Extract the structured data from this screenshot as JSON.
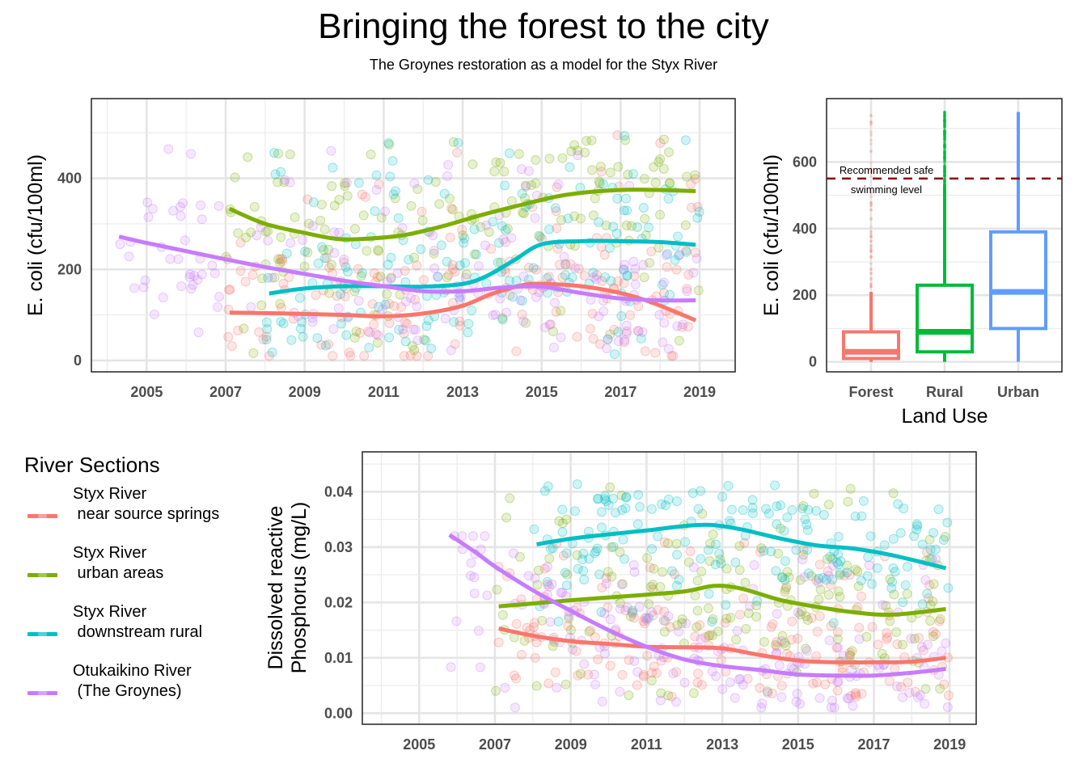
{
  "title": "Bringing the forest to the city",
  "subtitle": "The Groynes restoration as a model for the Styx River",
  "legend": {
    "title": "River Sections",
    "items": [
      {
        "line1": "Styx River",
        "line2": " near source springs",
        "color": "#F8766D"
      },
      {
        "line1": "Styx River",
        "line2": " urban areas",
        "color": "#7CAE00"
      },
      {
        "line1": "Styx River",
        "line2": " downstream rural",
        "color": "#00BFC4"
      },
      {
        "line1": "Otukaikino River",
        "line2": " (The Groynes)",
        "color": "#C77CFF"
      }
    ]
  },
  "chart_data": [
    {
      "id": "ecoli-time",
      "type": "scatter",
      "title": "",
      "xlabel": "",
      "ylabel": "E. coli (cfu/100ml)",
      "xlim": [
        2003.6,
        2019.9
      ],
      "ylim": [
        -25,
        575
      ],
      "x_ticks": [
        "2005",
        "2007",
        "2009",
        "2011",
        "2013",
        "2015",
        "2017",
        "2019"
      ],
      "y_ticks": [
        "0",
        "200",
        "400"
      ],
      "grid": true,
      "series": [
        {
          "name": "Styx River near source springs",
          "color": "#F8766D",
          "smooth": {
            "x": [
              2007.1,
              2008,
              2009,
              2010,
              2011,
              2012,
              2013,
              2013.7,
              2014.5,
              2015,
              2016,
              2017,
              2017.8,
              2018.9
            ],
            "y": [
              105,
              104,
              102,
              100,
              97,
              103,
              120,
              145,
              165,
              168,
              163,
              148,
              127,
              88
            ]
          },
          "point_range": {
            "x": [
              2007,
              2019
            ],
            "y": [
              10,
              550
            ]
          }
        },
        {
          "name": "Styx River urban areas",
          "color": "#7CAE00",
          "smooth": {
            "x": [
              2007.1,
              2008,
              2009,
              2009.8,
              2010.5,
              2011.5,
              2012.5,
              2013.5,
              2014.5,
              2015.5,
              2016.5,
              2017.5,
              2018.9
            ],
            "y": [
              333,
              300,
              280,
              267,
              267,
              275,
              295,
              320,
              342,
              362,
              372,
              375,
              372
            ]
          },
          "point_range": {
            "x": [
              2007,
              2019
            ],
            "y": [
              10,
              550
            ]
          }
        },
        {
          "name": "Styx River downstream rural",
          "color": "#00BFC4",
          "smooth": {
            "x": [
              2008.1,
              2009,
              2010,
              2011,
              2012,
              2013,
              2013.6,
              2014.3,
              2015,
              2016,
              2017,
              2018,
              2018.9
            ],
            "y": [
              147,
              158,
              163,
              163,
              162,
              168,
              185,
              220,
              255,
              262,
              262,
              260,
              254
            ]
          },
          "point_range": {
            "x": [
              2008,
              2019
            ],
            "y": [
              10,
              550
            ]
          }
        },
        {
          "name": "Otukaikino River (The Groynes)",
          "color": "#C77CFF",
          "smooth": {
            "x": [
              2004.3,
              2005,
              2006,
              2007,
              2008,
              2009,
              2010,
              2011,
              2012,
              2013,
              2014,
              2015,
              2016,
              2017,
              2018,
              2018.9
            ],
            "y": [
              272,
              258,
              240,
              222,
              205,
              190,
              175,
              163,
              152,
              152,
              160,
              162,
              148,
              136,
              132,
              132
            ]
          },
          "point_range": {
            "x": [
              2004.3,
              2019
            ],
            "y": [
              10,
              520
            ]
          }
        }
      ]
    },
    {
      "id": "ecoli-landuse",
      "type": "box",
      "xlabel": "Land Use",
      "ylabel": "E. coli (cfu/100ml)",
      "ylim": [
        -30,
        790
      ],
      "y_ticks": [
        "0",
        "200",
        "400",
        "600"
      ],
      "categories": [
        "Forest",
        "Rural",
        "Urban"
      ],
      "boxes": [
        {
          "category": "Forest",
          "color": "#F8766D",
          "min": 0,
          "q1": 10,
          "median": 30,
          "q3": 90,
          "whisker_max": 210,
          "outliers_max": 740
        },
        {
          "category": "Rural",
          "color": "#00BA38",
          "min": 0,
          "q1": 30,
          "median": 90,
          "q3": 230,
          "whisker_max": 530,
          "outliers_max": 750
        },
        {
          "category": "Urban",
          "color": "#619CFF",
          "min": 0,
          "q1": 100,
          "median": 210,
          "q3": 390,
          "whisker_max": 750,
          "outliers_max": 750
        }
      ],
      "reference_line": {
        "value": 550,
        "label_line1": "Recommended safe",
        "label_line2": "swimming level",
        "color": "#8B0000"
      }
    },
    {
      "id": "drp-time",
      "type": "scatter",
      "xlabel": "",
      "ylabel_line1": "Dissolved reactive",
      "ylabel_line2": "Phosphorus (mg/L)",
      "xlim": [
        2003.5,
        2019.7
      ],
      "ylim": [
        -0.002,
        0.0472
      ],
      "x_ticks": [
        "2005",
        "2007",
        "2009",
        "2011",
        "2013",
        "2015",
        "2017",
        "2019"
      ],
      "y_ticks": [
        "0.00",
        "0.01",
        "0.02",
        "0.03",
        "0.04"
      ],
      "grid": true,
      "series": [
        {
          "name": "Styx River near source springs",
          "color": "#F8766D",
          "smooth": {
            "x": [
              2007.1,
              2008,
              2009,
              2010,
              2011,
              2012,
              2013,
              2014,
              2015,
              2016,
              2017,
              2018,
              2018.9
            ],
            "y": [
              0.0153,
              0.014,
              0.013,
              0.0125,
              0.012,
              0.0119,
              0.0117,
              0.0105,
              0.0095,
              0.0092,
              0.0092,
              0.0093,
              0.01
            ]
          },
          "point_range": {
            "x": [
              2007,
              2019
            ],
            "y": [
              0.003,
              0.034
            ]
          }
        },
        {
          "name": "Styx River urban areas",
          "color": "#7CAE00",
          "smooth": {
            "x": [
              2007.1,
              2008,
              2009,
              2010,
              2011,
              2012,
              2012.8,
              2013.5,
              2014.5,
              2015.5,
              2016.5,
              2017.5,
              2018.9
            ],
            "y": [
              0.0193,
              0.0198,
              0.0204,
              0.0209,
              0.0214,
              0.022,
              0.023,
              0.0225,
              0.0205,
              0.0192,
              0.0182,
              0.0178,
              0.0188
            ]
          },
          "point_range": {
            "x": [
              2007,
              2019
            ],
            "y": [
              0.003,
              0.045
            ]
          }
        },
        {
          "name": "Styx River downstream rural",
          "color": "#00BFC4",
          "smooth": {
            "x": [
              2008.1,
              2009,
              2010,
              2011,
              2012,
              2012.7,
              2013.5,
              2014.5,
              2015.5,
              2016.5,
              2017.5,
              2018.9
            ],
            "y": [
              0.0305,
              0.0315,
              0.0323,
              0.033,
              0.0338,
              0.034,
              0.0332,
              0.0316,
              0.0303,
              0.0297,
              0.0285,
              0.0262
            ]
          },
          "point_range": {
            "x": [
              2008,
              2019
            ],
            "y": [
              0.015,
              0.045
            ]
          }
        },
        {
          "name": "Otukaikino River (The Groynes)",
          "color": "#C77CFF",
          "smooth": {
            "x": [
              2005.8,
              2006.5,
              2007,
              2008,
              2009,
              2010,
              2011,
              2012,
              2013,
              2014,
              2015,
              2016,
              2017,
              2018,
              2018.9
            ],
            "y": [
              0.0322,
              0.029,
              0.0265,
              0.0222,
              0.0185,
              0.015,
              0.012,
              0.0097,
              0.0085,
              0.0078,
              0.007,
              0.0068,
              0.0068,
              0.0073,
              0.008
            ]
          },
          "point_range": {
            "x": [
              2005.8,
              2019
            ],
            "y": [
              0.001,
              0.032
            ]
          }
        }
      ]
    }
  ]
}
